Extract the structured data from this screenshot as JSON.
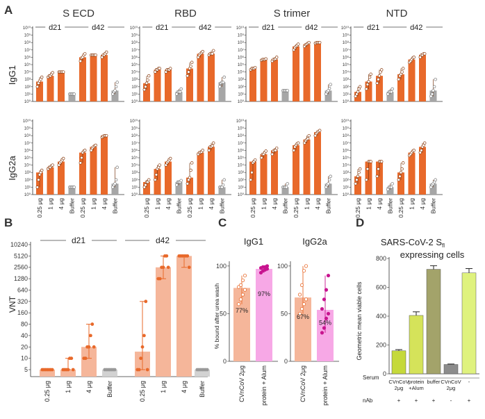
{
  "panels": {
    "A": {
      "label": "A",
      "ylabel_top": "IgG1",
      "ylabel_bottom": "IgG2a",
      "group_labels": [
        "d21",
        "d42"
      ],
      "categories": [
        "0.25 μg",
        "1 μg",
        "4 μg",
        "Buffer",
        "0.25 μg",
        "1 μg",
        "4 μg",
        "Buffer"
      ],
      "yticks": [
        "10⁰",
        "10¹",
        "10²",
        "10³",
        "10⁴",
        "10⁵",
        "10⁶",
        "10⁷",
        "10⁸",
        "10⁹",
        "10¹⁰"
      ]
    },
    "B": {
      "label": "B",
      "ylabel": "VNT",
      "group_labels": [
        "d21",
        "d42"
      ],
      "yticks": [
        "5",
        "10",
        "20",
        "40",
        "80",
        "160",
        "320",
        "640",
        "1280",
        "2560",
        "5120",
        "10240"
      ]
    },
    "C": {
      "label": "C",
      "ylabel": "% bound after urea wash",
      "yticks": [
        "0",
        "50",
        "100"
      ],
      "categories": [
        "CVnCoV 2μg",
        "protein + Alum"
      ]
    },
    "D": {
      "label": "D",
      "title_line1": "SARS-CoV-2 S",
      "title_sub": "fl",
      "title_line2": "expressing cells",
      "ylabel": "Geometric mean viable cells",
      "yticks": [
        "0",
        "200",
        "400",
        "600",
        "800"
      ],
      "row1_label": "Serum",
      "row2_label": "nAb",
      "serum_labels": [
        [
          "CVnCoV",
          "2μg"
        ],
        [
          "protein",
          "+Alum"
        ],
        [
          "buffer",
          ""
        ],
        [
          "CVnCoV",
          "2μg"
        ],
        [
          "-",
          ""
        ]
      ],
      "nab_labels": [
        "+",
        "+",
        "+",
        "-",
        "+"
      ]
    }
  },
  "colors": {
    "orange": "#e8692a",
    "gray": "#a6a6a6",
    "light_orange": "#f5b69a",
    "pink": "#f7a8e6",
    "magenta": "#c8148f",
    "lime": "#c8df3c",
    "dark_olive": "#8a8a5a"
  },
  "chart_data": [
    {
      "type": "bar",
      "panel": "A",
      "title": "S ECD",
      "ylabel": "IgG1",
      "yscale": "log10",
      "ylim": [
        1,
        10000000000.0
      ],
      "categories": [
        "0.25 μg",
        "1 μg",
        "4 μg",
        "Buffer",
        "0.25 μg",
        "1 μg",
        "4 μg",
        "Buffer"
      ],
      "values": [
        500,
        3000,
        10000,
        10,
        1000000,
        2000000,
        2000000,
        30
      ],
      "points": [
        [
          100,
          300,
          600,
          1000,
          2000
        ],
        [
          2000,
          3000,
          3000,
          5000,
          8000
        ],
        [
          10000,
          10000,
          10000,
          10000,
          10000
        ],
        [
          10,
          10,
          10,
          10,
          10
        ],
        [
          300000,
          800000,
          1000000,
          2000000,
          3000000
        ],
        [
          2000000,
          2000000,
          2000000,
          2000000,
          2000000
        ],
        [
          1000000,
          2000000,
          2000000,
          3000000,
          5000000
        ],
        [
          10,
          20,
          30,
          100,
          400
        ]
      ]
    },
    {
      "type": "bar",
      "panel": "A",
      "title": "RBD",
      "ylabel": "IgG1",
      "yscale": "log10",
      "ylim": [
        1,
        10000000000.0
      ],
      "categories": [
        "0.25 μg",
        "1 μg",
        "4 μg",
        "Buffer",
        "0.25 μg",
        "1 μg",
        "4 μg",
        "Buffer"
      ],
      "values": [
        300,
        20000,
        20000,
        20,
        30000,
        3000000,
        3000000,
        400
      ],
      "points": [
        [
          40,
          100,
          300,
          800,
          3000
        ],
        [
          10000,
          20000,
          20000,
          30000,
          30000
        ],
        [
          10000,
          20000,
          20000,
          20000,
          30000
        ],
        [
          10,
          20,
          20,
          20,
          50
        ],
        [
          3000,
          10000,
          30000,
          60000,
          200000
        ],
        [
          1000000,
          2000000,
          3000000,
          4000000,
          6000000
        ],
        [
          2000000,
          3000000,
          3000000,
          3000000,
          8000000
        ],
        [
          100,
          300,
          400,
          400,
          2000
        ]
      ]
    },
    {
      "type": "bar",
      "panel": "A",
      "title": "S trimer",
      "ylabel": "IgG1",
      "yscale": "log10",
      "ylim": [
        1,
        10000000000.0
      ],
      "categories": [
        "0.25 μg",
        "1 μg",
        "4 μg",
        "Buffer",
        "0.25 μg",
        "1 μg",
        "4 μg",
        "Buffer"
      ],
      "values": [
        30000,
        500000,
        500000,
        30,
        30000000,
        60000000,
        100000000,
        30
      ],
      "points": [
        [
          20000,
          30000,
          30000,
          30000,
          40000
        ],
        [
          400000,
          500000,
          500000,
          500000,
          600000
        ],
        [
          300000,
          500000,
          500000,
          600000,
          1000000
        ],
        [
          30,
          30,
          30,
          30,
          30
        ],
        [
          10000000,
          20000000,
          30000000,
          40000000,
          60000000
        ],
        [
          30000000,
          50000000,
          60000000,
          80000000,
          100000000
        ],
        [
          80000000,
          100000000,
          100000000,
          100000000,
          100000000
        ],
        [
          10,
          20,
          30,
          60,
          200
        ]
      ]
    },
    {
      "type": "bar",
      "panel": "A",
      "title": "NTD",
      "ylabel": "IgG1",
      "yscale": "log10",
      "ylim": [
        1,
        10000000000.0
      ],
      "categories": [
        "0.25 μg",
        "1 μg",
        "4 μg",
        "Buffer",
        "0.25 μg",
        "1 μg",
        "4 μg",
        "Buffer"
      ],
      "values": [
        20,
        500,
        3000,
        20,
        5000,
        500000,
        2000000,
        30
      ],
      "points": [
        [
          5,
          10,
          20,
          50,
          100
        ],
        [
          50,
          200,
          500,
          2000,
          5000
        ],
        [
          300,
          1000,
          3000,
          10000,
          20000
        ],
        [
          10,
          20,
          20,
          20,
          50
        ],
        [
          1000,
          3000,
          5000,
          10000,
          30000
        ],
        [
          200000,
          300000,
          500000,
          800000,
          1000000
        ],
        [
          1000000,
          2000000,
          2000000,
          3000000,
          3000000
        ],
        [
          5,
          10,
          30,
          100,
          1000
        ]
      ]
    },
    {
      "type": "bar",
      "panel": "A",
      "title": "S ECD",
      "ylabel": "IgG2a",
      "yscale": "log10",
      "ylim": [
        1,
        10000000000.0
      ],
      "categories": [
        "0.25 μg",
        "1 μg",
        "4 μg",
        "Buffer",
        "0.25 μg",
        "1 μg",
        "4 μg",
        "Buffer"
      ],
      "values": [
        1000,
        5000,
        30000,
        10,
        500000,
        3000000,
        100000000,
        30
      ],
      "points": [
        [
          10,
          100,
          500,
          1000,
          2000
        ],
        [
          3000,
          5000,
          5000,
          8000,
          10000
        ],
        [
          10000,
          20000,
          30000,
          50000,
          80000
        ],
        [
          10,
          10,
          10,
          10,
          10
        ],
        [
          20000,
          100000,
          500000,
          800000,
          1000000
        ],
        [
          1000000,
          2000000,
          3000000,
          4000000,
          5000000
        ],
        [
          60000000,
          80000000,
          100000000,
          100000000,
          100000000
        ],
        [
          10,
          20,
          30,
          100,
          5000
        ]
      ]
    },
    {
      "type": "bar",
      "panel": "A",
      "title": "RBD",
      "ylabel": "IgG2a",
      "yscale": "log10",
      "ylim": [
        1,
        10000000000.0
      ],
      "categories": [
        "0.25 μg",
        "1 μg",
        "4 μg",
        "Buffer",
        "0.25 μg",
        "1 μg",
        "4 μg",
        "Buffer"
      ],
      "values": [
        50,
        3000,
        30000,
        50,
        200,
        500000,
        3000000,
        10
      ],
      "points": [
        [
          10,
          20,
          50,
          50,
          100
        ],
        [
          100,
          500,
          3000,
          5000,
          10000
        ],
        [
          10000,
          20000,
          30000,
          50000,
          80000
        ],
        [
          20,
          50,
          50,
          50,
          80
        ],
        [
          30,
          100,
          200,
          2000,
          20000
        ],
        [
          300000,
          500000,
          500000,
          600000,
          1000000
        ],
        [
          1000000,
          3000000,
          3000000,
          4000000,
          10000000
        ],
        [
          10,
          10,
          10,
          20,
          100
        ]
      ]
    },
    {
      "type": "bar",
      "panel": "A",
      "title": "S trimer",
      "ylabel": "IgG2a",
      "yscale": "log10",
      "ylim": [
        1,
        10000000000.0
      ],
      "categories": [
        "0.25 μg",
        "1 μg",
        "4 μg",
        "Buffer",
        "0.25 μg",
        "1 μg",
        "4 μg",
        "Buffer"
      ],
      "values": [
        30000,
        300000,
        1000000,
        10,
        5000000,
        30000000,
        300000000,
        30
      ],
      "points": [
        [
          100,
          1000,
          20000,
          30000,
          50000
        ],
        [
          100000,
          300000,
          300000,
          500000,
          800000
        ],
        [
          300000,
          800000,
          1000000,
          1000000,
          2000000
        ],
        [
          10,
          10,
          10,
          10,
          30
        ],
        [
          1000000,
          3000000,
          5000000,
          8000000,
          10000000
        ],
        [
          10000000,
          20000000,
          30000000,
          40000000,
          100000000
        ],
        [
          100000000,
          200000000,
          300000000,
          400000000,
          500000000
        ],
        [
          10,
          20,
          30,
          100,
          300
        ]
      ]
    },
    {
      "type": "bar",
      "panel": "A",
      "title": "NTD",
      "ylabel": "IgG2a",
      "yscale": "log10",
      "ylim": [
        1,
        10000000000.0
      ],
      "categories": [
        "0.25 μg",
        "1 μg",
        "4 μg",
        "Buffer",
        "0.25 μg",
        "1 μg",
        "4 μg",
        "Buffer"
      ],
      "values": [
        300,
        30000,
        30000,
        10,
        1000,
        500000,
        3000000,
        30
      ],
      "points": [
        [
          30,
          100,
          300,
          1000,
          3000
        ],
        [
          100,
          3000,
          30000,
          30000,
          30000
        ],
        [
          300,
          3000,
          30000,
          30000,
          30000
        ],
        [
          5,
          10,
          10,
          10,
          30
        ],
        [
          100,
          300,
          1000,
          3000,
          20000
        ],
        [
          200000,
          300000,
          500000,
          800000,
          1000000
        ],
        [
          500000,
          1000000,
          3000000,
          5000000,
          10000000
        ],
        [
          10,
          20,
          30,
          50,
          100
        ]
      ]
    },
    {
      "type": "bar",
      "panel": "B",
      "title": "",
      "ylabel": "VNT",
      "yscale": "log2",
      "categories": [
        "0.25 μg",
        "1 μg",
        "4 μg",
        "Buffer",
        "0.25 μg",
        "1 μg",
        "4 μg",
        "Buffer"
      ],
      "values": [
        5,
        5,
        20,
        5,
        15,
        2560,
        5120,
        5
      ],
      "points": [
        [
          5,
          5,
          5,
          5,
          5,
          5,
          5
        ],
        [
          5,
          5,
          5,
          5,
          10,
          10,
          5
        ],
        [
          10,
          10,
          20,
          20,
          40,
          80,
          20
        ],
        [
          5,
          5,
          5,
          5,
          5,
          5,
          5
        ],
        [
          5,
          5,
          10,
          20,
          40,
          320,
          5
        ],
        [
          1280,
          1280,
          2560,
          2560,
          5120,
          5120,
          2560
        ],
        [
          5120,
          5120,
          5120,
          5120,
          5120,
          5120,
          2560
        ],
        [
          5,
          5,
          5,
          5,
          5,
          5,
          5
        ]
      ]
    },
    {
      "type": "bar",
      "panel": "C",
      "title": "IgG1",
      "ylabel": "% bound after urea wash",
      "ylim": [
        0,
        105
      ],
      "categories": [
        "CVnCoV 2μg",
        "protein + Alum"
      ],
      "values": [
        77,
        97
      ],
      "value_labels": [
        "77%",
        "97%"
      ],
      "points": [
        [
          60,
          65,
          70,
          75,
          78,
          80,
          85,
          90
        ],
        [
          93,
          95,
          96,
          97,
          98,
          99,
          99,
          100
        ]
      ]
    },
    {
      "type": "bar",
      "panel": "C",
      "title": "IgG2a",
      "ylabel": "% bound after urea wash",
      "ylim": [
        0,
        105
      ],
      "categories": [
        "CVnCoV 2μg",
        "protein + Alum"
      ],
      "values": [
        67,
        54
      ],
      "value_labels": [
        "67%",
        "54%"
      ],
      "points": [
        [
          50,
          55,
          60,
          65,
          70,
          80,
          95,
          100
        ],
        [
          30,
          35,
          45,
          50,
          55,
          65,
          75,
          90
        ]
      ]
    },
    {
      "type": "bar",
      "panel": "D",
      "title": "SARS-CoV-2 Sfl expressing cells",
      "ylabel": "Geometric mean viable cells",
      "ylim": [
        0,
        800
      ],
      "categories": [
        "CVnCoV 2μg / +",
        "protein +Alum / +",
        "buffer / +",
        "CVnCoV 2μg / -",
        "- / +"
      ],
      "values": [
        160,
        405,
        725,
        65,
        700
      ],
      "errors": [
        8,
        25,
        25,
        3,
        30
      ]
    }
  ]
}
